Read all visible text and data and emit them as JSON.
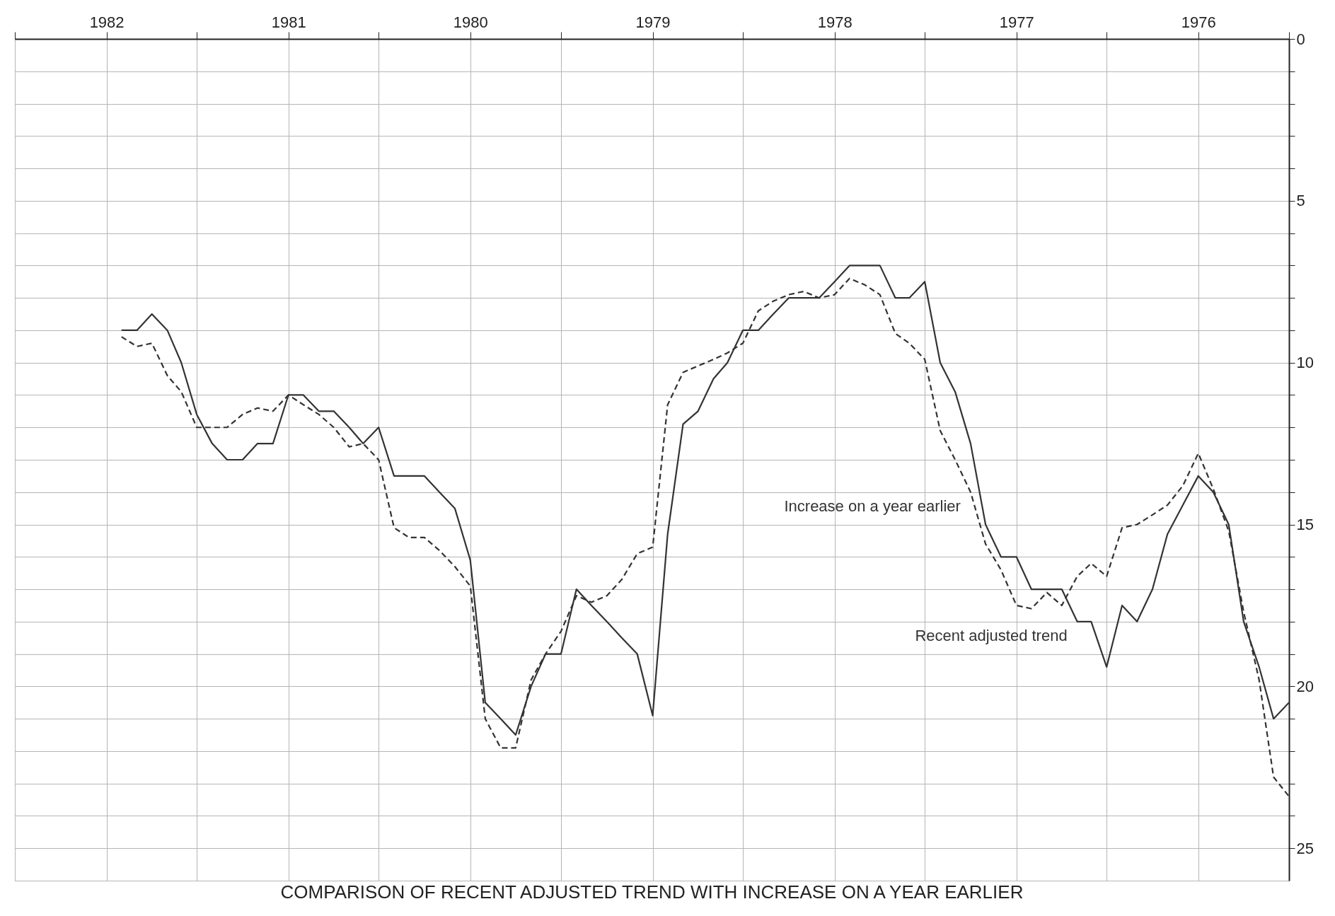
{
  "chart_data": {
    "type": "line",
    "title": "COMPARISON OF RECENT ADJUSTED TREND WITH INCREASE ON A YEAR EARLIER",
    "x": [
      "1976-01",
      "1976-02",
      "1976-03",
      "1976-04",
      "1976-05",
      "1976-06",
      "1976-07",
      "1976-08",
      "1976-09",
      "1976-10",
      "1976-11",
      "1976-12",
      "1977-01",
      "1977-02",
      "1977-03",
      "1977-04",
      "1977-05",
      "1977-06",
      "1977-07",
      "1977-08",
      "1977-09",
      "1977-10",
      "1977-11",
      "1977-12",
      "1978-01",
      "1978-02",
      "1978-03",
      "1978-04",
      "1978-05",
      "1978-06",
      "1978-07",
      "1978-08",
      "1978-09",
      "1978-10",
      "1978-11",
      "1978-12",
      "1979-01",
      "1979-02",
      "1979-03",
      "1979-04",
      "1979-05",
      "1979-06",
      "1979-07",
      "1979-08",
      "1979-09",
      "1979-10",
      "1979-11",
      "1979-12",
      "1980-01",
      "1980-02",
      "1980-03",
      "1980-04",
      "1980-05",
      "1980-06",
      "1980-07",
      "1980-08",
      "1980-09",
      "1980-10",
      "1980-11",
      "1980-12",
      "1981-01",
      "1981-02",
      "1981-03",
      "1981-04",
      "1981-05",
      "1981-06",
      "1981-07",
      "1981-08",
      "1981-09",
      "1981-10",
      "1981-11",
      "1981-12",
      "1982-01",
      "1982-02",
      "1982-03",
      "1982-04",
      "1982-05",
      "1982-06"
    ],
    "series": [
      {
        "name": "Recent adjusted trend",
        "color": "#333333",
        "line_style": "solid",
        "values": [
          20.5,
          21.0,
          19.4,
          18.0,
          15.0,
          14.0,
          13.5,
          14.4,
          15.3,
          17.0,
          18.0,
          17.5,
          19.4,
          18.0,
          18.0,
          17.0,
          17.0,
          17.0,
          16.0,
          16.0,
          15.0,
          12.5,
          10.9,
          10.0,
          7.5,
          8.0,
          8.0,
          7.0,
          7.0,
          7.0,
          7.5,
          8.0,
          8.0,
          8.0,
          8.5,
          9.0,
          9.0,
          10.0,
          10.5,
          11.5,
          11.9,
          15.3,
          20.9,
          19.0,
          18.5,
          18.0,
          17.5,
          17.0,
          19.0,
          19.0,
          20.0,
          21.5,
          21.0,
          20.5,
          16.1,
          14.5,
          14.0,
          13.5,
          13.5,
          13.5,
          12.0,
          12.5,
          12.0,
          11.5,
          11.5,
          11.0,
          11.0,
          12.5,
          12.5,
          13.0,
          13.0,
          12.5,
          11.6,
          10.0,
          9.0,
          8.5,
          9.0,
          9.0
        ]
      },
      {
        "name": "Increase on a year earlier",
        "color": "#333333",
        "line_style": "dashed",
        "values": [
          23.4,
          22.8,
          19.8,
          17.7,
          15.2,
          13.9,
          12.8,
          13.8,
          14.4,
          14.7,
          15.0,
          15.1,
          16.6,
          16.2,
          16.6,
          17.5,
          17.1,
          17.6,
          17.5,
          16.4,
          15.6,
          14.0,
          13.0,
          12.1,
          9.9,
          9.4,
          9.1,
          7.9,
          7.6,
          7.4,
          7.9,
          8.0,
          7.8,
          7.9,
          8.1,
          8.4,
          9.4,
          9.7,
          9.9,
          10.1,
          10.3,
          11.3,
          15.7,
          15.9,
          16.7,
          17.2,
          17.4,
          17.2,
          18.3,
          19.0,
          19.8,
          21.9,
          21.9,
          21.0,
          16.9,
          16.3,
          15.8,
          15.4,
          15.4,
          15.1,
          13.0,
          12.5,
          12.6,
          12.0,
          11.6,
          11.3,
          11.0,
          11.5,
          11.4,
          11.6,
          12.0,
          12.0,
          12.0,
          10.9,
          10.4,
          9.4,
          9.5,
          9.2
        ]
      }
    ],
    "xlim": [
      "1983-01",
      "1976-01"
    ],
    "xticks": [
      {
        "value": "1976-01",
        "label": null
      },
      {
        "value": "1976-07",
        "label": "1976"
      },
      {
        "value": "1977-01",
        "label": null
      },
      {
        "value": "1977-07",
        "label": "1977"
      },
      {
        "value": "1978-01",
        "label": null
      },
      {
        "value": "1978-07",
        "label": "1978"
      },
      {
        "value": "1979-01",
        "label": null
      },
      {
        "value": "1979-07",
        "label": "1979"
      },
      {
        "value": "1980-01",
        "label": null
      },
      {
        "value": "1980-07",
        "label": "1980"
      },
      {
        "value": "1981-01",
        "label": null
      },
      {
        "value": "1981-07",
        "label": "1981"
      },
      {
        "value": "1982-01",
        "label": null
      },
      {
        "value": "1982-07",
        "label": "1982"
      },
      {
        "value": "1983-01",
        "label": null
      }
    ],
    "ylim": [
      26,
      0
    ],
    "yticks": [
      0,
      {
        "value": 1,
        "label": null
      },
      {
        "value": 2,
        "label": null
      },
      {
        "value": 3,
        "label": null
      },
      {
        "value": 4,
        "label": null
      },
      5,
      {
        "value": 6,
        "label": null
      },
      {
        "value": 7,
        "label": null
      },
      {
        "value": 8,
        "label": null
      },
      {
        "value": 9,
        "label": null
      },
      10,
      {
        "value": 11,
        "label": null
      },
      {
        "value": 12,
        "label": null
      },
      {
        "value": 13,
        "label": null
      },
      {
        "value": 14,
        "label": null
      },
      15,
      {
        "value": 16,
        "label": null
      },
      {
        "value": 17,
        "label": null
      },
      {
        "value": 18,
        "label": null
      },
      {
        "value": 19,
        "label": null
      },
      20,
      {
        "value": 21,
        "label": null
      },
      {
        "value": 22,
        "label": null
      },
      {
        "value": 23,
        "label": null
      },
      {
        "value": 24,
        "label": null
      },
      25
    ],
    "grid": true
  }
}
